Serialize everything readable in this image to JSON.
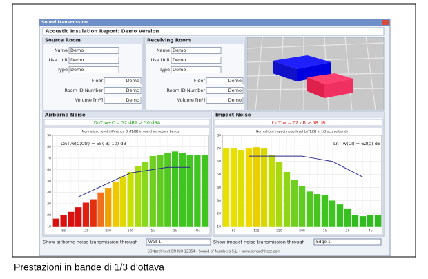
{
  "window": {
    "title": "Sound transmission",
    "header": "Acoustic Insulation Report: Demo Version",
    "source_room": {
      "title": "Source Room",
      "fields": [
        {
          "label": "Name",
          "value": "Demo"
        },
        {
          "label": "Use Unit",
          "value": "Demo"
        },
        {
          "label": "Type",
          "value": "Demo"
        },
        {
          "label": "Floor",
          "value": "Demo"
        },
        {
          "label": "Room ID Number",
          "value": "Demo"
        },
        {
          "label": "Volume [m³]",
          "value": "Demo"
        }
      ]
    },
    "receiving_room": {
      "title": "Receiving Room",
      "fields": [
        {
          "label": "Name",
          "value": "Demo"
        },
        {
          "label": "Use Unit",
          "value": "Demo"
        },
        {
          "label": "Type",
          "value": "Demo"
        },
        {
          "label": "Floor",
          "value": "Demo"
        },
        {
          "label": "Room ID Number",
          "value": "Demo"
        },
        {
          "label": "Volume [m³]",
          "value": "Demo"
        }
      ]
    },
    "airborne": {
      "title": "Airborne Noise",
      "result": "DnT,w+C = 52 dBA > 50 dBA",
      "selector_label": "Show airborne noise transmission through",
      "selector_value": "Wall 1"
    },
    "impact": {
      "title": "Impact Noise",
      "result": "L'nT,w = 62 dB > 58 dB",
      "selector_label": "Show impact noise transmission through",
      "selector_value": "Edge 1"
    },
    "footer": "SONarchitect EN ISO 12354 - Sound of Numbers S.L. - www.sonarchitect.com"
  },
  "caption": "Prestazioni in bande di 1/3 d’ottava",
  "chart_data": [
    {
      "type": "bar",
      "title": "Normalized level difference DnT[dB] in one-third octave bands",
      "annotation": "DnT,w(C;Ctr) = 55(-3;-10) dB",
      "categories": [
        null,
        "63",
        null,
        null,
        "125",
        null,
        null,
        "250",
        null,
        null,
        "500",
        null,
        null,
        "1k",
        null,
        null,
        "2k",
        null,
        null,
        "4k",
        null
      ],
      "ylim": [
        10,
        90
      ],
      "yticks": [
        10,
        20,
        30,
        40,
        50,
        60,
        70,
        80,
        90
      ],
      "grid": true,
      "series": [
        {
          "type": "bar",
          "values": [
            17,
            20,
            23,
            27,
            31,
            34,
            40,
            44,
            49,
            54,
            58,
            63,
            67,
            72,
            73,
            75,
            76,
            75,
            73,
            73,
            73
          ],
          "colors": [
            "#d81010",
            "#d81010",
            "#d81010",
            "#d81010",
            "#e02010",
            "#e03010",
            "#f07020",
            "#f0a000",
            "#f0c800",
            "#e0d800",
            "#c8e000",
            "#a8dc10",
            "#88d820",
            "#70d020",
            "#60cc20",
            "#50c820",
            "#40c420",
            "#40c420",
            "#40c420",
            "#40c420",
            "#40c420"
          ]
        },
        {
          "type": "line",
          "color": "#2a2a8a",
          "values": [
            null,
            null,
            null,
            36,
            39,
            42,
            45,
            48,
            51,
            54,
            57,
            58,
            59,
            60,
            61,
            62,
            62,
            62,
            62,
            null,
            null
          ]
        }
      ]
    },
    {
      "type": "bar",
      "title": "Normalized impact noise level LnT[dB] in 1/3 octave bands",
      "annotation": "LnT,w(CI) = 62(0) dB",
      "categories": [
        null,
        "63",
        null,
        null,
        "125",
        null,
        null,
        "250",
        null,
        null,
        "500",
        null,
        null,
        "1k",
        null,
        null,
        "2k",
        null,
        null,
        "4k",
        null
      ],
      "ylim": [
        10,
        80
      ],
      "yticks": [
        10,
        20,
        30,
        40,
        50,
        60,
        70,
        80
      ],
      "grid": true,
      "series": [
        {
          "type": "bar",
          "values": [
            70,
            70,
            69,
            70,
            71,
            70,
            65,
            60,
            52,
            46,
            41,
            37,
            35,
            34,
            30,
            27,
            24,
            19,
            18,
            19,
            19
          ],
          "colors": [
            "#e8e000",
            "#e8e000",
            "#e0e000",
            "#f0d800",
            "#e8d000",
            "#d8d800",
            "#c0dc00",
            "#a8d810",
            "#90d418",
            "#70d020",
            "#60cc20",
            "#50c820",
            "#48c420",
            "#40c420",
            "#40c420",
            "#38c020",
            "#38c020",
            "#30bc20",
            "#30bc20",
            "#30bc20",
            "#30bc20"
          ]
        },
        {
          "type": "line",
          "color": "#2a2a8a",
          "values": [
            null,
            null,
            null,
            64,
            64,
            64,
            64,
            64,
            64,
            64,
            64,
            63,
            62,
            61,
            60,
            57,
            54,
            51,
            48,
            null,
            null
          ]
        }
      ]
    }
  ]
}
